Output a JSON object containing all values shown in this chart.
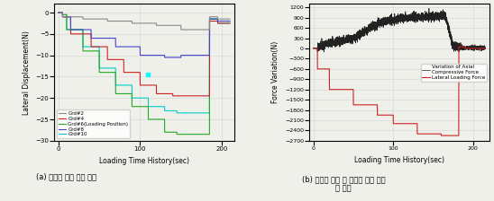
{
  "left_plot": {
    "xlabel": "Loading Time History(sec)",
    "ylabel": "Lateral Displacement(N)",
    "xlim": [
      -5,
      215
    ],
    "ylim": [
      -30,
      2
    ],
    "yticks": [
      0,
      -5,
      -10,
      -15,
      -20,
      -25,
      -30
    ],
    "xticks": [
      0,
      100,
      200
    ],
    "legend": [
      "Grd#2",
      "Grd#4",
      "Grd#6(Loading Position)",
      "Grd#8",
      "Grd#10"
    ],
    "colors": [
      "#888888",
      "#cc2222",
      "#22aa22",
      "#4444cc",
      "#00cccc"
    ]
  },
  "right_plot": {
    "xlabel": "Loading Time History(sec)",
    "ylabel": "Force Variation(N)",
    "xlim": [
      -5,
      220
    ],
    "ylim": [
      -2700,
      1300
    ],
    "yticks": [
      1200,
      900,
      600,
      300,
      0,
      -300,
      -600,
      -900,
      -1200,
      -1500,
      -1800,
      -2100,
      -2400,
      -2700
    ],
    "xticks": [
      0,
      100,
      200
    ],
    "legend": [
      "Variation of Axial\nCompressive Force",
      "Lateral Loading Force"
    ],
    "colors": [
      "#222222",
      "#cc2222"
    ]
  },
  "caption_a": "(a) 횡방향 굽힘 변위 이력",
  "caption_b": "(b) 축방향 누름 및 횡방향 굽힘 하중\n의 변화",
  "bg_color": "#f0f0eb"
}
